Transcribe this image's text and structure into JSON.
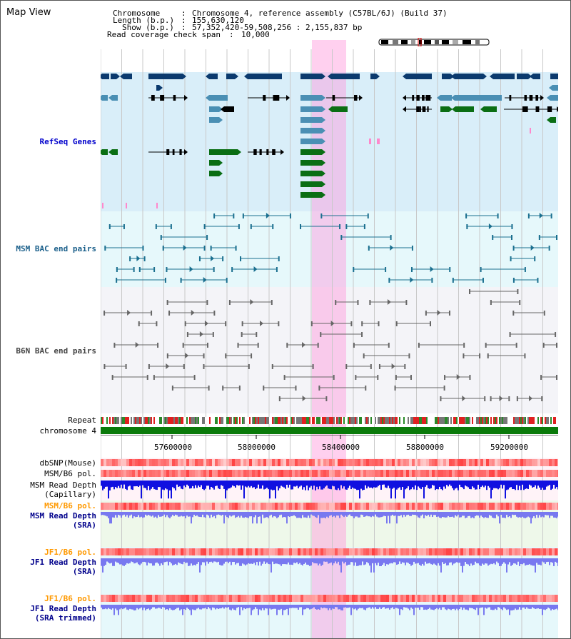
{
  "title": "Map View",
  "header": {
    "chromosome_key": "Chromosome",
    "chromosome_val": "Chromosome 4, reference assembly (C57BL/6J) (Build 37)",
    "length_key": "Length (b.p.)",
    "length_val": "155,630,120",
    "show_key": "Show (b.p.)",
    "show_val": "57,352,420-59,508,256 : 2,155,837 bp",
    "coverage_key": "Read coverage check span",
    "coverage_val": "10,000"
  },
  "tracks": {
    "refseq": "RefSeq Genes",
    "msm_bac": "MSM BAC end pairs",
    "b6n_bac": "B6N BAC end pairs",
    "repeat": "Repeat",
    "chromosome": "chromosome 4",
    "dbsnp": "dbSNP(Mouse)",
    "msm_b6_pol": "MSM/B6 pol.",
    "msm_depth_cap_1": "MSM Read Depth",
    "msm_depth_cap_2": "(Capillary)",
    "msm_b6_pol_sra": "MSM/B6 pol.",
    "msm_depth_sra_1": "MSM Read Depth",
    "msm_depth_sra_2": "(SRA)",
    "jf1_b6_pol": "JF1/B6 pol.",
    "jf1_depth_sra_1": "JF1 Read Depth",
    "jf1_depth_sra_2": "(SRA)",
    "jf1_b6_pol_2": "JF1/B6 pol.",
    "jf1_depth_trim_1": "JF1 Read Depth",
    "jf1_depth_trim_2": "(SRA trimmed)"
  },
  "axis": {
    "ticks": [
      "57600000",
      "58000000",
      "58400000",
      "58800000",
      "59200000"
    ]
  },
  "colors": {
    "refseq_dark": "#0b3a6e",
    "refseq_mid": "#4a8fb4",
    "refseq_green": "#0a6e14",
    "highlight": "#ff96dc",
    "depth_blue": "#1010e0",
    "depth_light": "#7878f0"
  }
}
